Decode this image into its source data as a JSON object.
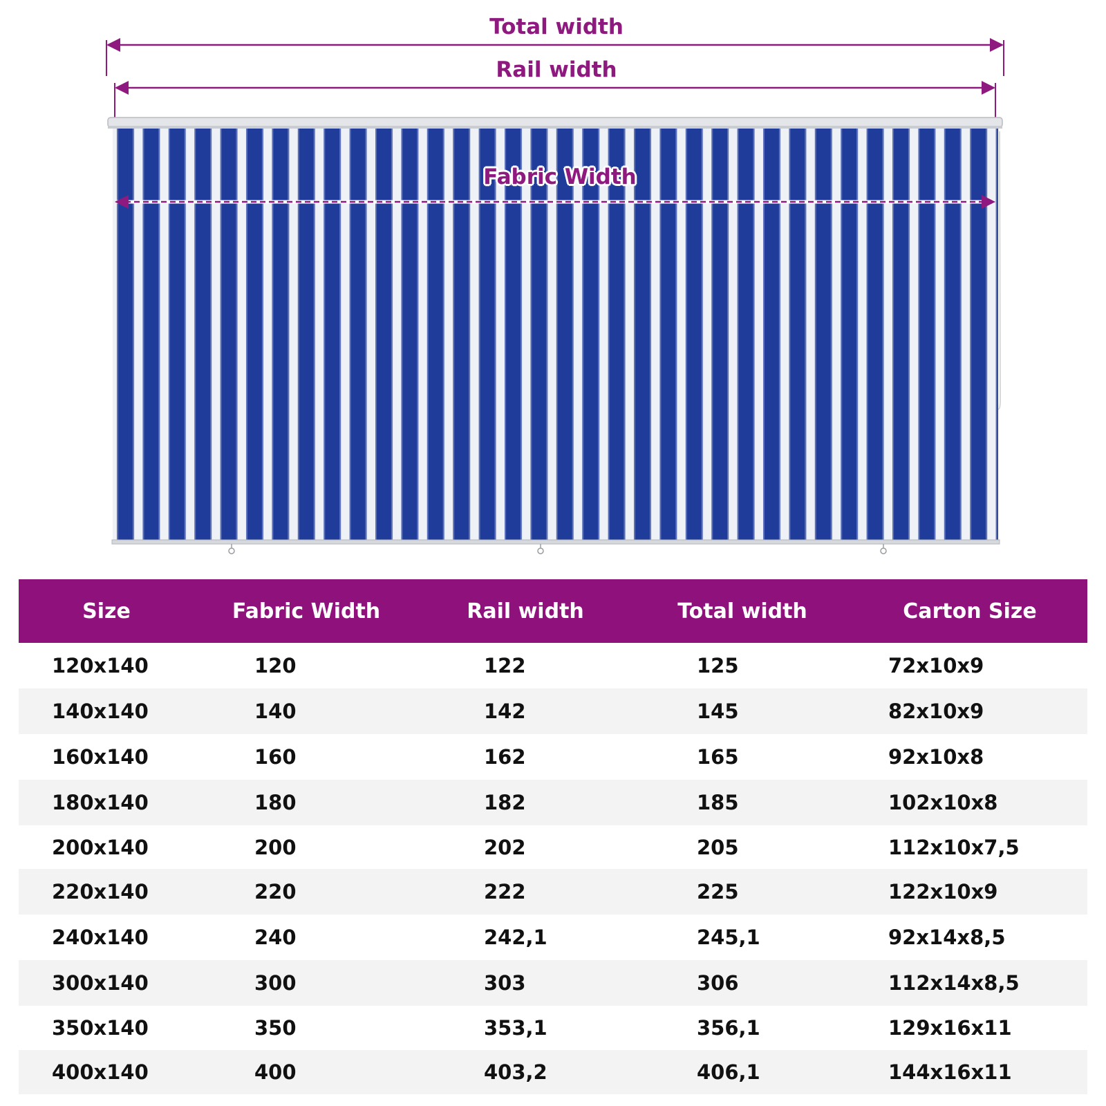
{
  "diagram": {
    "labels": {
      "total_width": "Total width",
      "rail_width": "Rail width",
      "fabric_width": "Fabric Width"
    },
    "colors": {
      "accent": "#8e117c",
      "stripe_blue": "#1f3c9a",
      "stripe_white": "#f2f4f8"
    }
  },
  "table": {
    "headers": [
      "Size",
      "Fabric Width",
      "Rail width",
      "Total width",
      "Carton Size"
    ],
    "rows": [
      [
        "120x140",
        "120",
        "122",
        "125",
        "72x10x9"
      ],
      [
        "140x140",
        "140",
        "142",
        "145",
        "82x10x9"
      ],
      [
        "160x140",
        "160",
        "162",
        "165",
        "92x10x8"
      ],
      [
        "180x140",
        "180",
        "182",
        "185",
        "102x10x8"
      ],
      [
        "200x140",
        "200",
        "202",
        "205",
        "112x10x7,5"
      ],
      [
        "220x140",
        "220",
        "222",
        "225",
        "122x10x9"
      ],
      [
        "240x140",
        "240",
        "242,1",
        "245,1",
        "92x14x8,5"
      ],
      [
        "300x140",
        "300",
        "303",
        "306",
        "112x14x8,5"
      ],
      [
        "350x140",
        "350",
        "353,1",
        "356,1",
        "129x16x11"
      ],
      [
        "400x140",
        "400",
        "403,2",
        "406,1",
        "144x16x11"
      ]
    ]
  }
}
